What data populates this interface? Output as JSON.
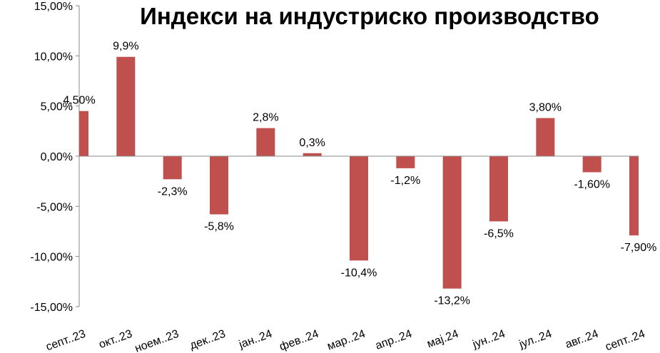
{
  "chart_data": {
    "type": "bar",
    "title": "Индекси на индустриско производство",
    "xlabel": "",
    "ylabel": "",
    "ylim": [
      -15,
      15
    ],
    "yticks": [
      15,
      10,
      5,
      0,
      -5,
      -10,
      -15
    ],
    "ytick_labels": [
      "15,00%",
      "10,00%",
      "5,00%",
      "0,00%",
      "-5,00%",
      "-10,00%",
      "-15,00%"
    ],
    "categories": [
      "септ..23",
      "окт..23",
      "ноем..23",
      "дек..23",
      "јан..24",
      "фев..24",
      "мар..24",
      "апр..24",
      "мај.24",
      "јун..24",
      "јул..24",
      "авг..24",
      "септ..24"
    ],
    "values": [
      4.5,
      9.9,
      -2.3,
      -5.8,
      2.8,
      0.3,
      -10.4,
      -1.2,
      -13.2,
      -6.5,
      3.8,
      -1.6,
      -7.9
    ],
    "data_labels": [
      "4,50%",
      "9,9%",
      "-2,3%",
      "-5,8%",
      "2,8%",
      "0,3%",
      "-10,4%",
      "-1,2%",
      "-13,2%",
      "-6,5%",
      "3,80%",
      "-1,60%",
      "-7,90%"
    ],
    "bar_color": "#c0504d",
    "grid": false,
    "legend": "none"
  }
}
